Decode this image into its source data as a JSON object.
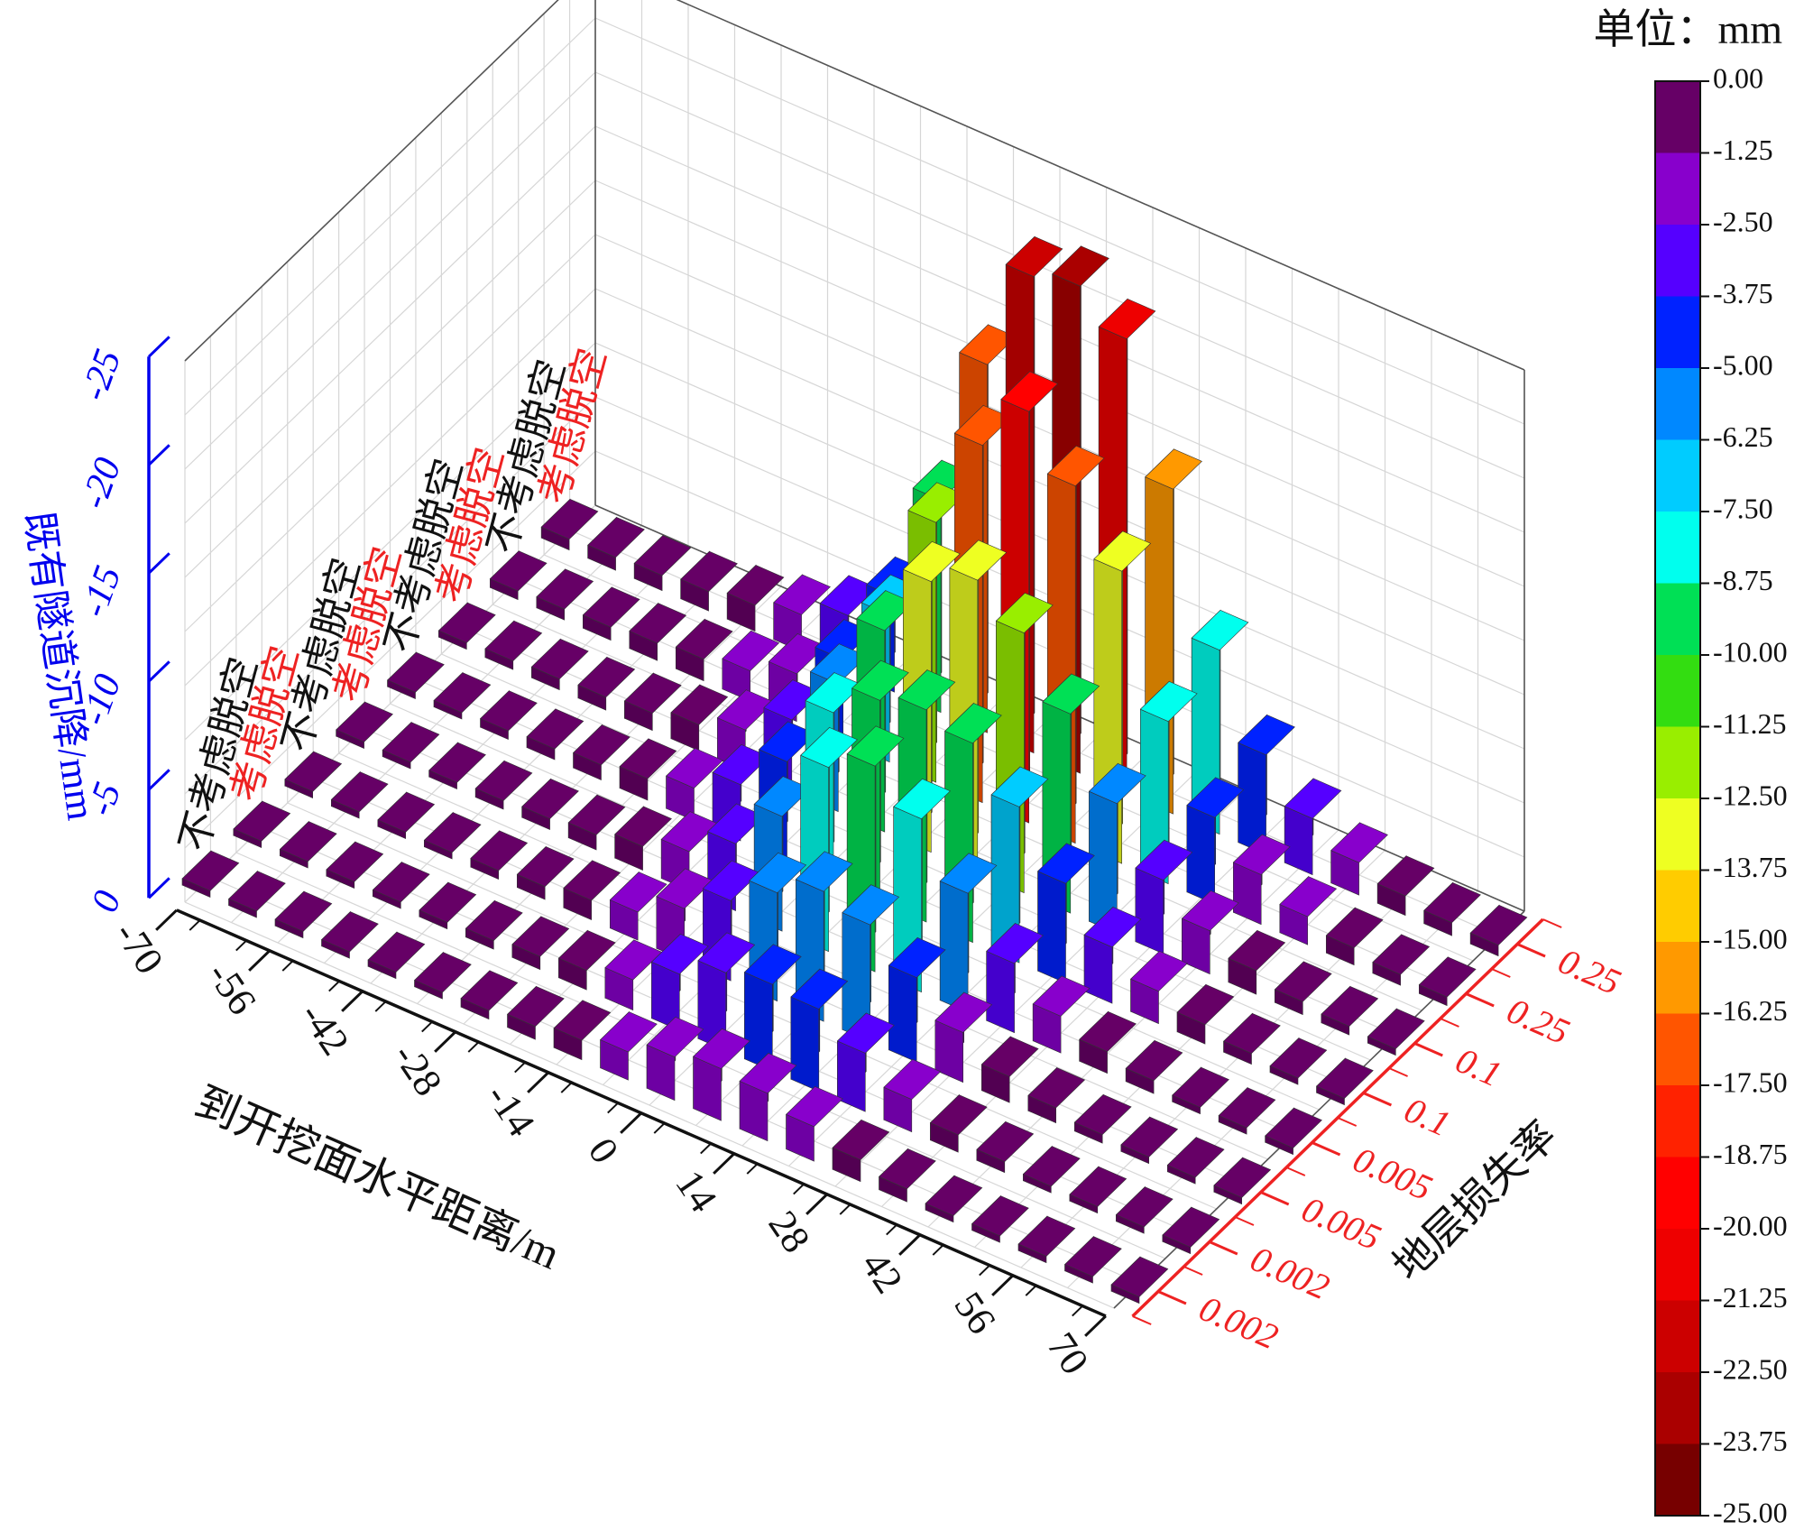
{
  "chart_data": {
    "type": "bar3d",
    "unit_label": "单位：mm",
    "x_axis": {
      "title": "到开挖面水平距离/m",
      "ticks": [
        "-70",
        "-56",
        "-42",
        "-28",
        "-14",
        "0",
        "14",
        "28",
        "42",
        "56",
        "70"
      ],
      "range": [
        -70,
        70
      ]
    },
    "z_axis": {
      "title": "既有隧道沉降/mm",
      "ticks": [
        "0",
        "-5",
        "-10",
        "-15",
        "-20",
        "-25"
      ],
      "range": [
        0,
        -25
      ]
    },
    "y_axis": {
      "title": "地层损失率",
      "ticks": [
        "0.002",
        "0.002",
        "0.005",
        "0.005",
        "0.1",
        "0.1",
        "0.25",
        "0.25"
      ]
    },
    "rows": [
      {
        "label": "不考虑脱空",
        "label_color": "#111111",
        "loss_ratio": "0.002"
      },
      {
        "label": "考虑脱空",
        "label_color": "#ee2222",
        "loss_ratio": "0.002"
      },
      {
        "label": "不考虑脱空",
        "label_color": "#111111",
        "loss_ratio": "0.005"
      },
      {
        "label": "考虑脱空",
        "label_color": "#ee2222",
        "loss_ratio": "0.005"
      },
      {
        "label": "不考虑脱空",
        "label_color": "#111111",
        "loss_ratio": "0.1"
      },
      {
        "label": "考虑脱空",
        "label_color": "#ee2222",
        "loss_ratio": "0.1"
      },
      {
        "label": "不考虑脱空",
        "label_color": "#111111",
        "loss_ratio": "0.25"
      },
      {
        "label": "考虑脱空",
        "label_color": "#ee2222",
        "loss_ratio": "0.25"
      }
    ],
    "x": [
      -70,
      -63,
      -56,
      -49,
      -42,
      -35,
      -28,
      -21,
      -14,
      -7,
      0,
      7,
      14,
      21,
      28,
      35,
      42,
      49,
      56,
      63,
      70
    ],
    "series": [
      {
        "values": [
          -0.1,
          -0.1,
          -0.1,
          -0.2,
          -0.2,
          -0.3,
          -0.4,
          -0.6,
          -0.9,
          -1.3,
          -2.0,
          -2.4,
          -2.2,
          -1.6,
          -1.0,
          -0.6,
          -0.3,
          -0.2,
          -0.1,
          -0.1,
          -0.1
        ]
      },
      {
        "values": [
          -0.1,
          -0.1,
          -0.2,
          -0.2,
          -0.3,
          -0.4,
          -0.6,
          -0.9,
          -1.4,
          -2.6,
          -3.6,
          -4.0,
          -3.8,
          -2.7,
          -1.5,
          -0.8,
          -0.5,
          -0.3,
          -0.2,
          -0.1,
          -0.1
        ]
      },
      {
        "values": [
          -0.1,
          -0.2,
          -0.2,
          -0.3,
          -0.4,
          -0.6,
          -0.9,
          -1.3,
          -2.4,
          -3.7,
          -5.0,
          -6.0,
          -5.4,
          -3.9,
          -2.3,
          -1.2,
          -0.7,
          -0.4,
          -0.2,
          -0.2,
          -0.1
        ]
      },
      {
        "values": [
          -0.2,
          -0.2,
          -0.3,
          -0.4,
          -0.5,
          -0.7,
          -1.1,
          -1.8,
          -3.1,
          -5.3,
          -8.5,
          -9.5,
          -8.0,
          -5.5,
          -3.2,
          -1.7,
          -1.0,
          -0.6,
          -0.3,
          -0.2,
          -0.2
        ]
      },
      {
        "values": [
          -0.3,
          -0.3,
          -0.4,
          -0.5,
          -0.7,
          -1.0,
          -1.5,
          -2.6,
          -4.6,
          -7.8,
          -9.3,
          -9.8,
          -9.2,
          -7.2,
          -4.6,
          -2.6,
          -1.5,
          -0.9,
          -0.5,
          -0.3,
          -0.3
        ]
      },
      {
        "values": [
          -0.3,
          -0.4,
          -0.5,
          -0.6,
          -0.8,
          -1.2,
          -1.9,
          -3.3,
          -5.9,
          -9.3,
          -12.5,
          -13.5,
          -12.0,
          -9.2,
          -6.0,
          -3.4,
          -2.0,
          -1.1,
          -0.6,
          -0.4,
          -0.3
        ]
      },
      {
        "values": [
          -0.4,
          -0.5,
          -0.6,
          -0.8,
          -1.0,
          -1.4,
          -2.2,
          -3.8,
          -6.8,
          -12.0,
          -16.5,
          -19.0,
          -16.5,
          -13.5,
          -7.5,
          -4.0,
          -2.3,
          -1.3,
          -0.8,
          -0.5,
          -0.4
        ]
      },
      {
        "values": [
          -0.5,
          -0.6,
          -0.7,
          -0.9,
          -1.2,
          -1.7,
          -2.6,
          -4.4,
          -9.8,
          -17.0,
          -22.0,
          -22.5,
          -21.0,
          -15.0,
          -8.5,
          -4.6,
          -2.6,
          -1.5,
          -0.9,
          -0.6,
          -0.5
        ]
      }
    ],
    "colorbar": {
      "ticks": [
        "0.00",
        "-1.25",
        "-2.50",
        "-3.75",
        "-5.00",
        "-6.25",
        "-7.50",
        "-8.75",
        "-10.00",
        "-11.25",
        "-12.50",
        "-13.75",
        "-15.00",
        "-16.25",
        "-17.50",
        "-18.75",
        "-20.00",
        "-21.25",
        "-22.50",
        "-23.75",
        "-25.00"
      ],
      "colors": [
        "#660066",
        "#8800cc",
        "#5500ff",
        "#0022ff",
        "#0088ff",
        "#00ccff",
        "#00ffee",
        "#00e055",
        "#33dd11",
        "#99ee00",
        "#eeff22",
        "#ffcc00",
        "#ff9900",
        "#ff5500",
        "#ff2200",
        "#ff0000",
        "#ee0000",
        "#cc0000",
        "#aa0000",
        "#770000"
      ]
    },
    "colors": {
      "z_axis": "#0000ee",
      "y_axis": "#ee2222",
      "x_axis": "#111111"
    }
  }
}
